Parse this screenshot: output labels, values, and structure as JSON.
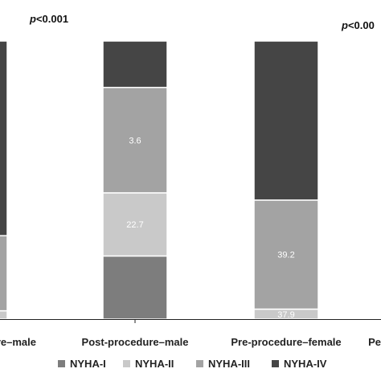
{
  "chart_data": {
    "type": "bar",
    "stacked": true,
    "categories": [
      "Pre-procedure–male",
      "Post-procedure–male",
      "Pre-procedure–female",
      "Post-procedure–female"
    ],
    "category_display": [
      "re–male",
      "Post-procedure–male",
      "Pre-procedure–female",
      "Pe"
    ],
    "series": [
      {
        "name": "NYHA-I",
        "values": [
          0,
          22.7,
          0,
          null
        ]
      },
      {
        "name": "NYHA-II",
        "values": [
          3.0,
          22.7,
          3.6,
          null
        ]
      },
      {
        "name": "NYHA-III",
        "values": [
          27.0,
          37.9,
          39.2,
          null
        ]
      },
      {
        "name": "NYHA-IV",
        "values": [
          70.0,
          16.7,
          57.2,
          null
        ]
      }
    ],
    "data_labels": [
      [
        "",
        "",
        "",
        ""
      ],
      [
        "22.7",
        "22.7",
        "37.9",
        "16.7"
      ],
      [
        "",
        "3.6",
        "39.2",
        "57.2"
      ],
      [
        "",
        "",
        "",
        ""
      ]
    ],
    "colors": {
      "NYHA-I": "#7d7d7d",
      "NYHA-II": "#c9c9c9",
      "NYHA-III": "#a3a3a3",
      "NYHA-IV": "#454545"
    },
    "annotations": [
      "p<0.001",
      "p<0.00"
    ],
    "ylim": [
      0,
      100
    ],
    "legend_position": "bottom",
    "grid": false
  }
}
